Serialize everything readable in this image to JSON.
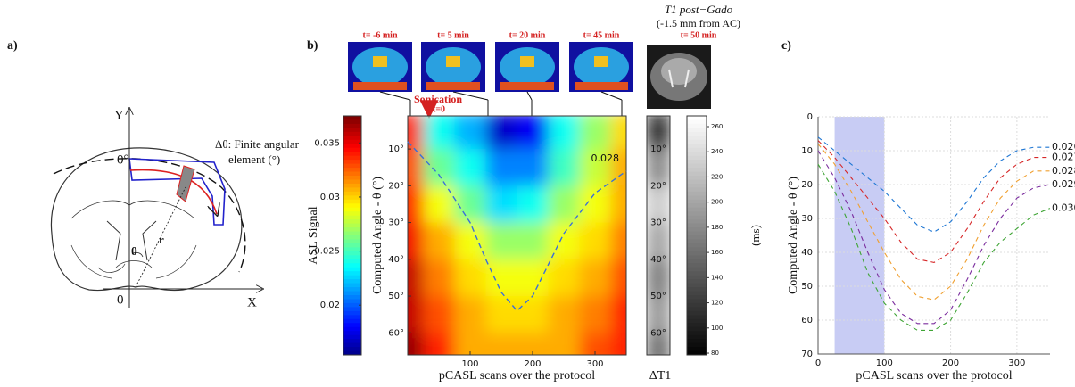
{
  "panels": {
    "a": "a)",
    "b": "b)",
    "c": "c)"
  },
  "diagram": {
    "y_axis": "Y",
    "x_axis": "X",
    "origin": "0",
    "zero_angle": "0°",
    "theta": "θ",
    "radius": "r",
    "element_line1": "Δθ: Finite angular",
    "element_line2": "element (°)"
  },
  "thumbnails": [
    "t= -6 min",
    "t= 5 min",
    "t= 20 min",
    "t= 45 min"
  ],
  "t1_image": {
    "title": "T1 post−Gado",
    "subtitle": "(-1.5 mm from AC)",
    "time": "t= 50 min"
  },
  "sonication": {
    "label": "Sonication",
    "time": "t=0"
  },
  "chart_data": [
    {
      "type": "heatmap",
      "xlabel": "pCASL scans over the protocol",
      "ylabel": "Computed Angle - θ (°)",
      "x": [
        0,
        50,
        100,
        150,
        200,
        250,
        300,
        350
      ],
      "y": [
        5,
        15,
        25,
        35,
        45,
        55,
        65
      ],
      "values": [
        [
          0.034,
          0.024,
          0.022,
          0.017,
          0.018,
          0.024,
          0.027,
          0.03
        ],
        [
          0.033,
          0.026,
          0.024,
          0.021,
          0.021,
          0.025,
          0.028,
          0.031
        ],
        [
          0.034,
          0.029,
          0.026,
          0.023,
          0.024,
          0.027,
          0.029,
          0.031
        ],
        [
          0.035,
          0.031,
          0.029,
          0.027,
          0.027,
          0.029,
          0.03,
          0.032
        ],
        [
          0.036,
          0.032,
          0.03,
          0.029,
          0.029,
          0.03,
          0.031,
          0.033
        ],
        [
          0.036,
          0.033,
          0.031,
          0.03,
          0.03,
          0.031,
          0.032,
          0.034
        ],
        [
          0.037,
          0.034,
          0.031,
          0.031,
          0.031,
          0.031,
          0.033,
          0.034
        ]
      ],
      "xlim": [
        0,
        350
      ],
      "xticks": [
        100,
        200,
        300
      ],
      "ylim": [
        1,
        66
      ],
      "y_reversed": true,
      "yticks": [
        {
          "value": 10,
          "label": "10°"
        },
        {
          "value": 20,
          "label": "20°"
        },
        {
          "value": 30,
          "label": "30°"
        },
        {
          "value": 40,
          "label": "40°"
        },
        {
          "value": 50,
          "label": "50°"
        },
        {
          "value": 60,
          "label": "60°"
        }
      ],
      "colorbar_label": "ASL Signal",
      "clim": [
        0.0154,
        0.0375
      ],
      "cticks": [
        0.02,
        0.025,
        0.03,
        0.035
      ],
      "contour": {
        "name": "0.028",
        "color": "#3a6fd8",
        "x": [
          0,
          50,
          100,
          125,
          150,
          175,
          200,
          250,
          300,
          350
        ],
        "values": [
          8,
          17,
          30,
          40,
          49,
          54,
          50,
          33,
          22,
          16
        ]
      },
      "delta_t1": {
        "label": "ΔT1",
        "unit": "(ms)",
        "values": [
          110,
          180,
          230,
          200,
          170,
          190,
          160
        ],
        "clim": [
          78.6,
          268.5
        ],
        "ticks": [
          80,
          100,
          120,
          140,
          160,
          180,
          200,
          220,
          240,
          260
        ]
      }
    },
    {
      "type": "line",
      "xlabel": "pCASL scans over the protocol",
      "ylabel": "Computed Angle - θ (°)",
      "x": [
        0,
        25,
        50,
        75,
        100,
        125,
        150,
        175,
        200,
        225,
        250,
        275,
        300,
        325,
        350
      ],
      "series": [
        {
          "name": "0.026",
          "color": "#1f77d4",
          "values": [
            6,
            10,
            14,
            18,
            22,
            27,
            32,
            34,
            31,
            25,
            18,
            13,
            10,
            9,
            9
          ]
        },
        {
          "name": "0.027",
          "color": "#d62728",
          "values": [
            7,
            12,
            18,
            24,
            30,
            37,
            42,
            43,
            40,
            33,
            25,
            18,
            14,
            12,
            12
          ]
        },
        {
          "name": "0.028",
          "color": "#f0a030",
          "values": [
            8,
            14,
            22,
            31,
            40,
            48,
            53,
            54,
            50,
            42,
            32,
            24,
            19,
            16,
            16
          ]
        },
        {
          "name": "0.029",
          "color": "#7b2d9e",
          "values": [
            10,
            18,
            28,
            40,
            51,
            58,
            61,
            61,
            57,
            48,
            38,
            30,
            24,
            21,
            20
          ]
        },
        {
          "name": "0.030",
          "color": "#3fa535",
          "values": [
            14,
            22,
            33,
            46,
            55,
            60,
            63,
            63,
            60,
            52,
            43,
            37,
            33,
            29,
            27
          ]
        }
      ],
      "shaded_span": [
        25,
        100
      ],
      "xlim": [
        0,
        350
      ],
      "xticks": [
        0,
        100,
        200,
        300
      ],
      "ylim": [
        0,
        70
      ],
      "y_reversed": true,
      "yticks": [
        0,
        10,
        20,
        30,
        40,
        50,
        60,
        70
      ],
      "grid": true
    }
  ]
}
